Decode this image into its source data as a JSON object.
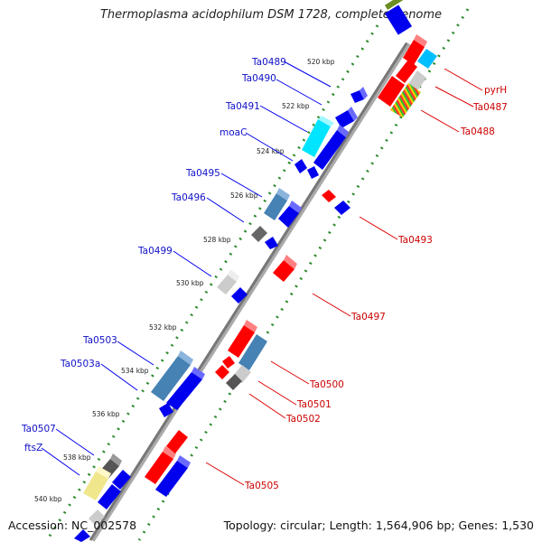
{
  "title": "Thermoplasma acidophilum DSM 1728, complete genome",
  "accession": "Accession: NC_002578",
  "summary": "Topology: circular; Length: 1,564,906 bp; Genes: 1,530",
  "scale_labels": [
    "520 kbp",
    "522 kbp",
    "524 kbp",
    "526 kbp",
    "528 kbp",
    "530 kbp",
    "532 kbp",
    "534 kbp",
    "536 kbp",
    "538 kbp",
    "540 kbp"
  ],
  "forward_gene_labels": [
    "Ta0489",
    "Ta0490",
    "Ta0491",
    "moaC",
    "Ta0495",
    "Ta0496",
    "Ta0499",
    "Ta0503",
    "Ta0503a",
    "Ta0507",
    "ftsZ"
  ],
  "reverse_gene_labels": [
    "pyrH",
    "Ta0487",
    "Ta0488",
    "Ta0493",
    "Ta0497",
    "Ta0500",
    "Ta0501",
    "Ta0502",
    "Ta0505"
  ],
  "colors": {
    "forward_label": "#1010c8",
    "reverse_label": "#cc0000",
    "forward_gene": "#0000ff",
    "reverse_gene": "#ff0000",
    "scale_dots": "#2e8b2e",
    "backbone": "#888888"
  }
}
